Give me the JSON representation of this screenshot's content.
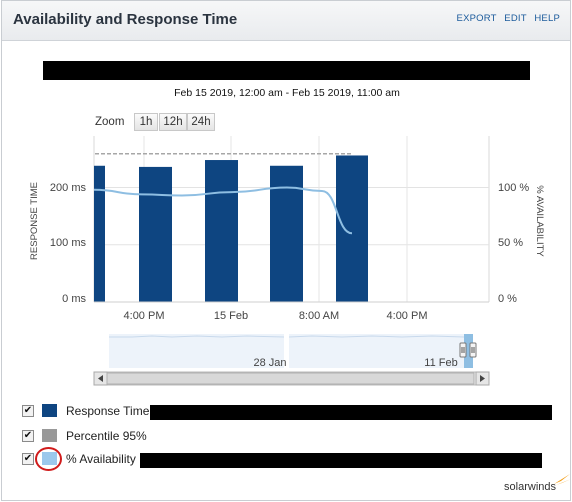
{
  "header": {
    "title": "Availability and Response Time",
    "links": [
      "EXPORT",
      "EDIT",
      "HELP"
    ]
  },
  "date_range": "Feb 15 2019, 12:00 am - Feb 15 2019, 11:00 am",
  "zoom": {
    "label": "Zoom",
    "options": [
      "1h",
      "12h",
      "24h"
    ]
  },
  "chart_data": {
    "type": "bar",
    "x_tick_labels": [
      "4:00 PM",
      "15 Feb",
      "8:00 AM",
      "4:00 PM"
    ],
    "ylabel_left": "RESPONSE TIME",
    "ylabel_right": "% AVAILABILITY",
    "left_axis_ticks": [
      "0 ms",
      "100 ms",
      "200 ms"
    ],
    "right_axis_ticks": [
      "0 %",
      "50 %",
      "100 %"
    ],
    "ylim_left": [
      0,
      290
    ],
    "ylim_right": [
      0,
      145
    ],
    "percentile_95_value": 259,
    "grid": true,
    "series": [
      {
        "name": "Response Time",
        "kind": "bar",
        "color": "#0e4581",
        "values": [
          238,
          236,
          248,
          238,
          256
        ]
      },
      {
        "name": "% Availability",
        "kind": "line",
        "color": "#8ebee2",
        "values": [
          98,
          94,
          93,
          96,
          100,
          97,
          60
        ]
      },
      {
        "name": "Percentile 95",
        "kind": "dashed-line",
        "color": "#a7a7a7"
      }
    ]
  },
  "navigator": {
    "labels": [
      "28 Jan",
      "11 Feb"
    ]
  },
  "legend": [
    {
      "label": "Response Time",
      "checked": true,
      "color": "#0e4581"
    },
    {
      "label": "Percentile 95%",
      "checked": true,
      "color": "#999999"
    },
    {
      "label": "% Availability",
      "checked": true,
      "color": "#9cc8ec"
    }
  ],
  "branding": "solarwinds"
}
